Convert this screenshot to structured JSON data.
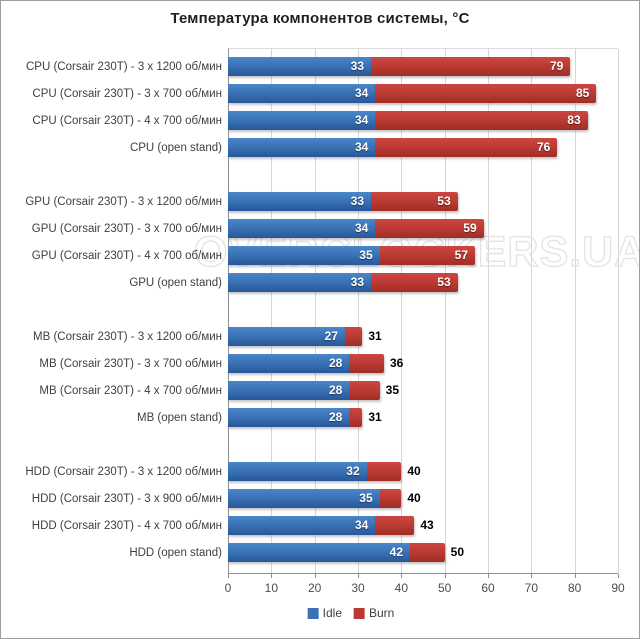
{
  "chart_data": {
    "type": "bar",
    "orientation": "horizontal",
    "stacked": true,
    "title": "Температура компонентов системы, °C",
    "xlim": [
      0,
      90
    ],
    "x_ticks": [
      0,
      10,
      20,
      30,
      40,
      50,
      60,
      70,
      80,
      90
    ],
    "grid": "vertical",
    "legend_position": "bottom-center",
    "watermark": "OVERCLOCKERS.UA",
    "series": [
      {
        "name": "Idle",
        "color": "#3a72b4"
      },
      {
        "name": "Burn",
        "color": "#bb3a33"
      }
    ],
    "groups": [
      {
        "component": "CPU",
        "rows": [
          {
            "label": "CPU (Corsair 230T) - 3 x 1200 об/мин",
            "idle": 33,
            "burn": 79,
            "burn_label_inside": true
          },
          {
            "label": "CPU (Corsair 230T) - 3 x 700 об/мин",
            "idle": 34,
            "burn": 85,
            "burn_label_inside": true
          },
          {
            "label": "CPU (Corsair 230T) - 4 x 700 об/мин",
            "idle": 34,
            "burn": 83,
            "burn_label_inside": true
          },
          {
            "label": "CPU (open stand)",
            "idle": 34,
            "burn": 76,
            "burn_label_inside": true
          }
        ]
      },
      {
        "component": "GPU",
        "rows": [
          {
            "label": "GPU (Corsair 230T) - 3 x 1200 об/мин",
            "idle": 33,
            "burn": 53,
            "burn_label_inside": true
          },
          {
            "label": "GPU (Corsair 230T) - 3 x 700 об/мин",
            "idle": 34,
            "burn": 59,
            "burn_label_inside": true
          },
          {
            "label": "GPU (Corsair 230T) - 4 x 700 об/мин",
            "idle": 35,
            "burn": 57,
            "burn_label_inside": true
          },
          {
            "label": "GPU (open stand)",
            "idle": 33,
            "burn": 53,
            "burn_label_inside": true
          }
        ]
      },
      {
        "component": "MB",
        "rows": [
          {
            "label": "MB (Corsair 230T) - 3 x 1200 об/мин",
            "idle": 27,
            "burn": 31,
            "burn_label_inside": false
          },
          {
            "label": "MB (Corsair 230T) - 3 x 700 об/мин",
            "idle": 28,
            "burn": 36,
            "burn_label_inside": false
          },
          {
            "label": "MB (Corsair 230T) - 4 x 700 об/мин",
            "idle": 28,
            "burn": 35,
            "burn_label_inside": false
          },
          {
            "label": "MB (open stand)",
            "idle": 28,
            "burn": 31,
            "burn_label_inside": false
          }
        ]
      },
      {
        "component": "HDD",
        "rows": [
          {
            "label": "HDD (Corsair 230T) - 3 x 1200 об/мин",
            "idle": 32,
            "burn": 40,
            "burn_label_inside": false
          },
          {
            "label": "HDD (Corsair 230T) - 3 x 900 об/мин",
            "idle": 35,
            "burn": 40,
            "burn_label_inside": false
          },
          {
            "label": "HDD (Corsair 230T) - 4 x 700 об/мин",
            "idle": 34,
            "burn": 43,
            "burn_label_inside": false
          },
          {
            "label": "HDD (open stand)",
            "idle": 42,
            "burn": 50,
            "burn_label_inside": false
          }
        ]
      }
    ]
  }
}
